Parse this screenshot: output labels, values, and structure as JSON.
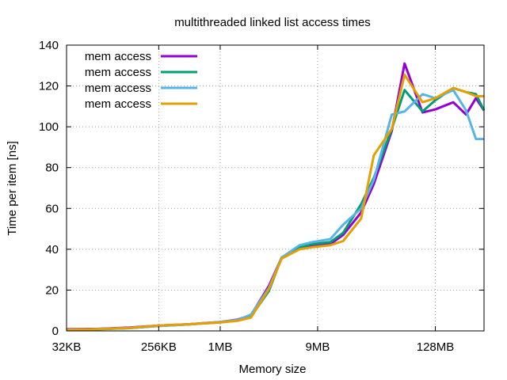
{
  "chart_data": {
    "type": "line",
    "title": "multithreaded linked list access times",
    "xlabel": "Memory size",
    "ylabel": "Time per item [ns]",
    "x_scale": "log2",
    "x_unit": "KB",
    "xlim": [
      32,
      393216
    ],
    "ylim": [
      0,
      140
    ],
    "x_ticks": [
      {
        "value": 32,
        "label": "32KB"
      },
      {
        "value": 256,
        "label": "256KB"
      },
      {
        "value": 1024,
        "label": "1MB"
      },
      {
        "value": 9216,
        "label": "9MB"
      },
      {
        "value": 131072,
        "label": "128MB"
      }
    ],
    "y_ticks": [
      {
        "value": 0,
        "label": "0"
      },
      {
        "value": 20,
        "label": "20"
      },
      {
        "value": 40,
        "label": "40"
      },
      {
        "value": 60,
        "label": "60"
      },
      {
        "value": 80,
        "label": "80"
      },
      {
        "value": 100,
        "label": "100"
      },
      {
        "value": 120,
        "label": "120"
      },
      {
        "value": 140,
        "label": "140"
      }
    ],
    "grid": true,
    "legend_position": "top-left",
    "x": [
      32,
      64,
      128,
      256,
      512,
      1024,
      1536,
      2048,
      3072,
      4096,
      6144,
      8192,
      12288,
      16384,
      24576,
      32768,
      49152,
      65536,
      98304,
      131072,
      196608,
      262144,
      327680,
      393216
    ],
    "series": [
      {
        "name": "mem access",
        "color": "#9400d3",
        "values": [
          0.8,
          1.0,
          1.6,
          2.6,
          3.3,
          4.4,
          5.6,
          7.7,
          22.0,
          36.0,
          40.5,
          41.5,
          42.5,
          47.0,
          58.0,
          72.0,
          98.0,
          131.0,
          107.0,
          108.5,
          112.0,
          106.0,
          114.0,
          108.0
        ]
      },
      {
        "name": "mem access",
        "color": "#009e73",
        "values": [
          0.5,
          0.8,
          1.3,
          2.4,
          3.2,
          4.2,
          5.2,
          7.0,
          19.5,
          36.0,
          41.0,
          42.5,
          43.5,
          48.0,
          62.0,
          75.0,
          99.0,
          118.0,
          107.5,
          113.0,
          119.0,
          117.0,
          116.0,
          108.0
        ]
      },
      {
        "name": "mem access",
        "color": "#56b4e9",
        "values": [
          0.6,
          0.9,
          1.4,
          2.4,
          3.2,
          4.4,
          5.4,
          8.0,
          21.0,
          36.0,
          42.0,
          43.5,
          45.0,
          52.0,
          60.0,
          74.0,
          106.0,
          107.5,
          116.0,
          114.0,
          118.0,
          108.0,
          94.0,
          94.0
        ]
      },
      {
        "name": "mem access",
        "color": "#e69f00",
        "values": [
          0.6,
          0.9,
          1.4,
          2.6,
          3.3,
          4.2,
          5.0,
          6.5,
          20.5,
          35.5,
          40.0,
          41.0,
          42.0,
          44.0,
          55.0,
          86.0,
          99.0,
          125.5,
          112.0,
          114.0,
          119.0,
          117.0,
          115.0,
          115.0
        ]
      }
    ]
  }
}
